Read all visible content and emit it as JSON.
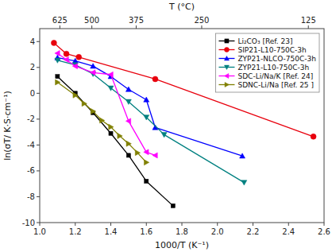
{
  "chart_data": {
    "type": "line",
    "x2label": "T (°C)",
    "xlabel": "1000/T (K⁻¹)",
    "ylabel": "ln(σT/ K·S·cm⁻¹)",
    "xlim": [
      1.0,
      2.6
    ],
    "ylim": [
      -10,
      5
    ],
    "x2lim": [
      1.0,
      2.6
    ],
    "xticks": [
      {
        "value": 1.0,
        "label": "1.0"
      },
      1.2,
      1.4,
      1.6,
      1.8,
      {
        "value": 2.0,
        "label": "2.0"
      },
      2.2,
      2.4,
      2.6
    ],
    "x2ticks": [
      {
        "value": 1.1133997661,
        "label": "625"
      },
      {
        "value": 1.293410076,
        "label": "500"
      },
      {
        "value": 1.5428527,
        "label": "375"
      },
      {
        "value": 1.911497649,
        "label": "250"
      },
      {
        "value": 2.511616225,
        "label": "125"
      }
    ],
    "yticks": [
      -10,
      -8,
      -6,
      -4,
      -2,
      0,
      2,
      4
    ],
    "grid": false,
    "legend": "upper right",
    "series": [
      {
        "name": "Li₂CO₃ [Ref. 23]",
        "color": "black",
        "marker": "square",
        "x": [
          1.1,
          1.2,
          1.3,
          1.4,
          1.5,
          1.6,
          1.75
        ],
        "values": [
          1.3,
          0.0,
          -1.5,
          -3.1,
          -4.8,
          -6.8,
          -8.7
        ]
      },
      {
        "name": "SIP21-L10-750C-3h",
        "color": "#e8000d",
        "marker": "circle",
        "x": [
          1.08,
          1.15,
          1.22,
          1.65,
          2.54
        ],
        "values": [
          3.9,
          3.05,
          2.8,
          1.1,
          -3.35
        ]
      },
      {
        "name": "ZYP21-NLCO-750C-3h",
        "color": "blue",
        "marker": "triangle-up",
        "x": [
          1.1,
          1.2,
          1.3,
          1.4,
          1.5,
          1.6,
          1.65,
          2.14
        ],
        "values": [
          2.75,
          2.5,
          2.1,
          1.3,
          0.3,
          -0.5,
          -2.65,
          -4.85
        ]
      },
      {
        "name": "ZYP21-L10-750C-3h",
        "color": "#008080",
        "marker": "triangle-down",
        "x": [
          1.1,
          1.2,
          1.3,
          1.4,
          1.5,
          1.6,
          1.7,
          2.15
        ],
        "values": [
          2.55,
          2.2,
          1.5,
          0.4,
          -0.65,
          -1.85,
          -3.2,
          -6.9
        ]
      },
      {
        "name": "SDC-Li/Na/K [Ref. 24]",
        "color": "magenta",
        "marker": "triangle-left",
        "x": [
          1.1,
          1.15,
          1.2,
          1.3,
          1.4,
          1.5,
          1.6,
          1.65
        ],
        "values": [
          3.1,
          2.6,
          2.1,
          1.6,
          1.45,
          -2.15,
          -4.55,
          -4.8
        ]
      },
      {
        "name": "SDNC-Li/Na [Ref. 25 ]",
        "color": "#808000",
        "marker": "triangle-right",
        "x": [
          1.1,
          1.2,
          1.25,
          1.3,
          1.35,
          1.4,
          1.45,
          1.5,
          1.55,
          1.6
        ],
        "values": [
          0.85,
          -0.15,
          -0.8,
          -1.4,
          -2.1,
          -2.6,
          -3.3,
          -3.9,
          -4.6,
          -5.35
        ]
      }
    ]
  }
}
